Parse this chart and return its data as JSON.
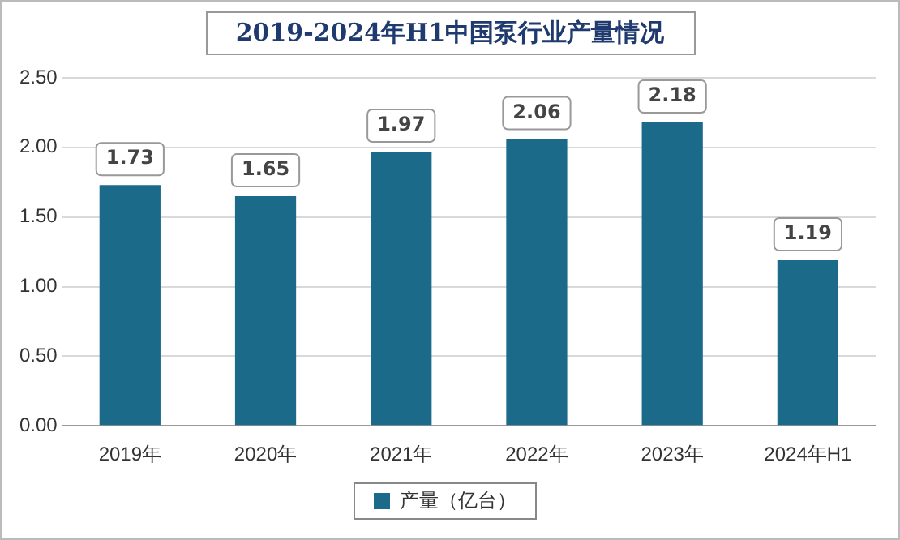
{
  "chart_data": {
    "type": "bar",
    "title": "2019-2024年H1中国泵行业产量情况",
    "categories": [
      "2019年",
      "2020年",
      "2021年",
      "2022年",
      "2023年",
      "2024年H1"
    ],
    "series": [
      {
        "name": "产量（亿台）",
        "color": "#1b6a8a",
        "values": [
          1.73,
          1.65,
          1.97,
          2.06,
          2.18,
          1.19
        ]
      }
    ],
    "ylim": [
      0,
      2.5
    ],
    "yticks": [
      {
        "value": 0,
        "label": "0.00"
      },
      {
        "value": 0.5,
        "label": "0.50"
      },
      {
        "value": 1,
        "label": "1.00"
      },
      {
        "value": 1.5,
        "label": "1.50"
      },
      {
        "value": 2,
        "label": "2.00"
      },
      {
        "value": 2.5,
        "label": "2.50"
      }
    ],
    "grid": "y",
    "legend": "bottom",
    "data_labels": true
  }
}
